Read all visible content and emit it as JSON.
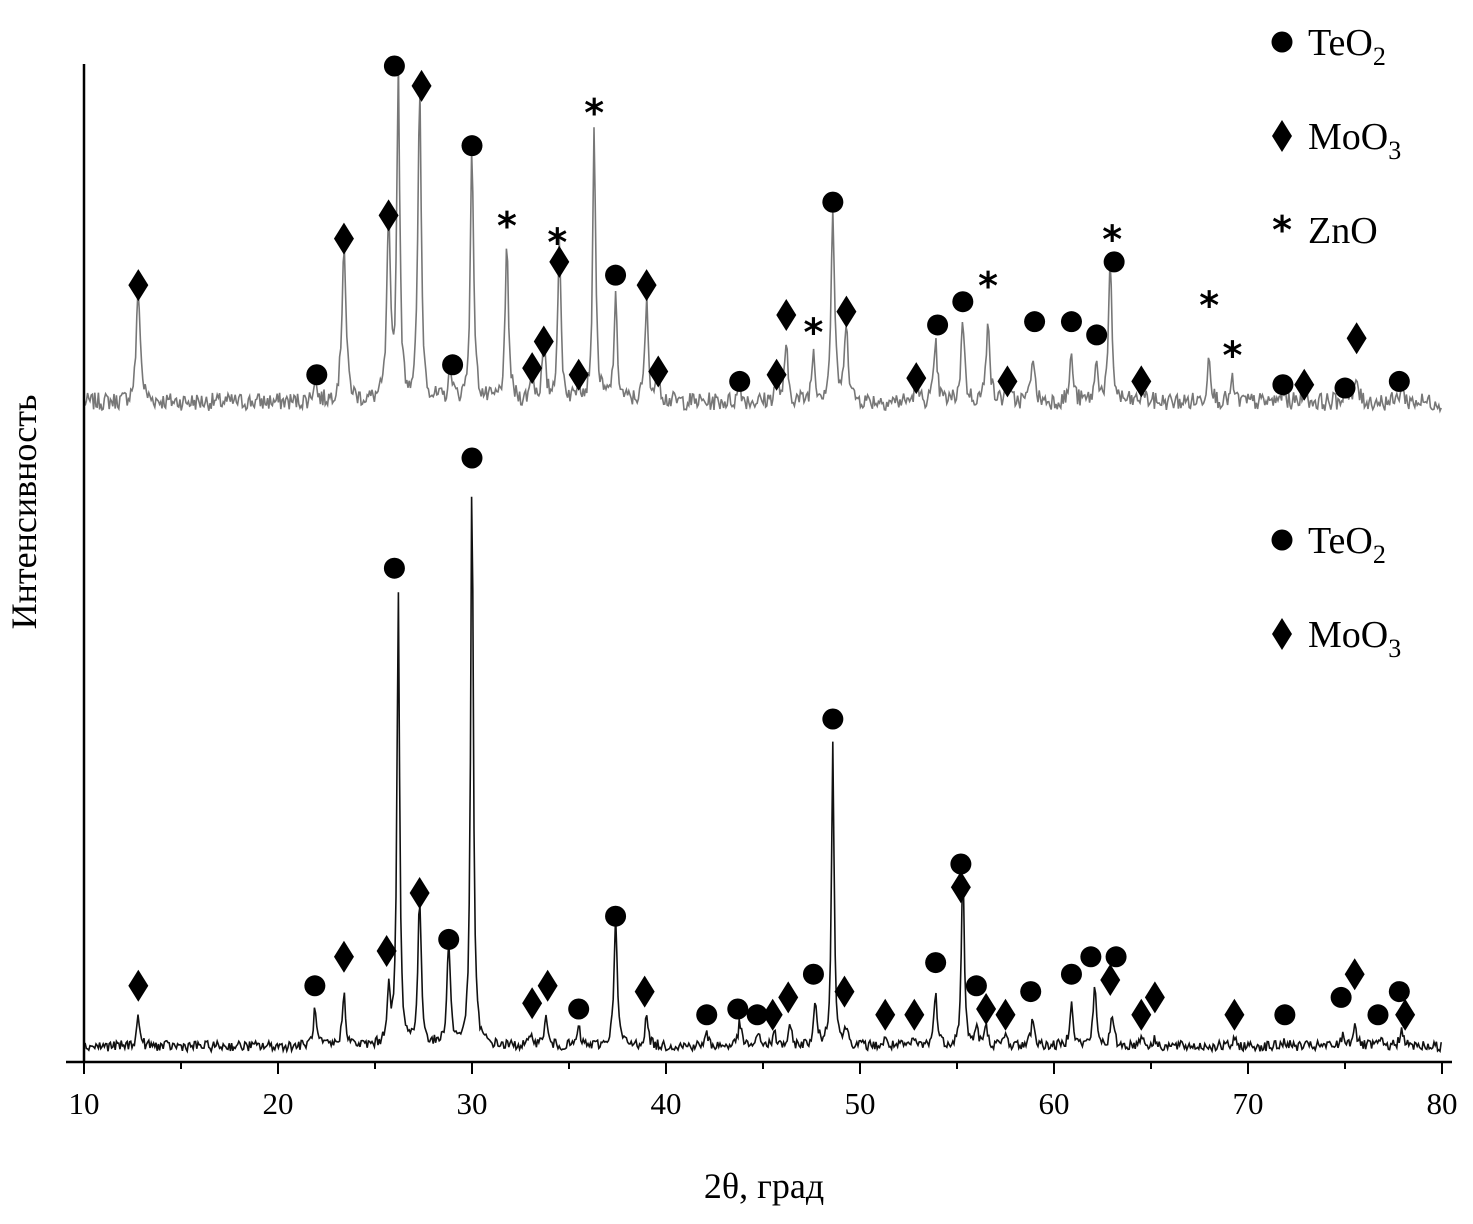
{
  "chart_data": {
    "type": "line",
    "xlabel": "2θ, град",
    "ylabel": "Интенсивность",
    "xlim": [
      10,
      80
    ],
    "xticks": [
      10,
      20,
      30,
      40,
      50,
      60,
      70,
      80
    ],
    "legends": [
      {
        "pattern": "top",
        "entries": [
          {
            "symbol": "circle",
            "text": "TeO",
            "sub": "2"
          },
          {
            "symbol": "diamond",
            "text": "MoO",
            "sub": "3"
          },
          {
            "symbol": "asterisk",
            "text": "ZnO",
            "sub": ""
          }
        ]
      },
      {
        "pattern": "bottom",
        "entries": [
          {
            "symbol": "circle",
            "text": "TeO",
            "sub": "2"
          },
          {
            "symbol": "diamond",
            "text": "MoO",
            "sub": "3"
          }
        ]
      }
    ],
    "series": [
      {
        "id": "top",
        "color": "#777777",
        "baseline_intensity": 0.03,
        "peaks": [
          [
            12.8,
            0.34,
            0.12
          ],
          [
            21.9,
            0.07,
            0.1
          ],
          [
            23.4,
            0.48,
            0.12
          ],
          [
            25.7,
            0.55,
            0.1
          ],
          [
            26.2,
            1.0,
            0.09
          ],
          [
            27.3,
            0.94,
            0.1
          ],
          [
            28.9,
            0.1,
            0.1
          ],
          [
            30.0,
            0.76,
            0.1
          ],
          [
            31.8,
            0.46,
            0.1
          ],
          [
            33.1,
            0.09,
            0.1
          ],
          [
            33.7,
            0.17,
            0.1
          ],
          [
            34.5,
            0.47,
            0.1
          ],
          [
            35.5,
            0.07,
            0.1
          ],
          [
            36.3,
            0.82,
            0.09
          ],
          [
            37.4,
            0.3,
            0.1
          ],
          [
            39.0,
            0.3,
            0.1
          ],
          [
            39.6,
            0.1,
            0.1
          ],
          [
            43.8,
            0.05,
            0.1
          ],
          [
            45.7,
            0.08,
            0.1
          ],
          [
            46.2,
            0.16,
            0.1
          ],
          [
            47.6,
            0.15,
            0.1
          ],
          [
            48.6,
            0.58,
            0.1
          ],
          [
            49.3,
            0.25,
            0.1
          ],
          [
            52.9,
            0.06,
            0.1
          ],
          [
            53.9,
            0.17,
            0.1
          ],
          [
            55.3,
            0.26,
            0.1
          ],
          [
            56.6,
            0.27,
            0.1
          ],
          [
            57.6,
            0.05,
            0.1
          ],
          [
            58.9,
            0.15,
            0.1
          ],
          [
            60.9,
            0.14,
            0.1
          ],
          [
            62.2,
            0.12,
            0.1
          ],
          [
            62.9,
            0.41,
            0.1
          ],
          [
            64.6,
            0.04,
            0.1
          ],
          [
            68.0,
            0.15,
            0.1
          ],
          [
            69.2,
            0.06,
            0.1
          ],
          [
            71.8,
            0.04,
            0.1
          ],
          [
            72.9,
            0.04,
            0.1
          ],
          [
            75.0,
            0.04,
            0.1
          ],
          [
            75.6,
            0.07,
            0.1
          ],
          [
            77.9,
            0.05,
            0.1
          ]
        ],
        "markers": [
          [
            "diamond",
            12.8,
            0.34
          ],
          [
            "circle",
            22.0,
            0.07
          ],
          [
            "diamond",
            23.4,
            0.48
          ],
          [
            "diamond",
            25.7,
            0.55
          ],
          [
            "circle",
            26.0,
            1.0
          ],
          [
            "diamond",
            27.4,
            0.94
          ],
          [
            "circle",
            29.0,
            0.1
          ],
          [
            "circle",
            30.0,
            0.76
          ],
          [
            "asterisk",
            31.8,
            0.53
          ],
          [
            "diamond",
            33.1,
            0.09
          ],
          [
            "diamond",
            33.7,
            0.17
          ],
          [
            "asterisk",
            34.4,
            0.48
          ],
          [
            "diamond",
            34.5,
            0.41
          ],
          [
            "diamond",
            35.5,
            0.07
          ],
          [
            "asterisk",
            36.3,
            0.87
          ],
          [
            "circle",
            37.4,
            0.37
          ],
          [
            "diamond",
            39.0,
            0.34
          ],
          [
            "diamond",
            39.6,
            0.08
          ],
          [
            "circle",
            43.8,
            0.05
          ],
          [
            "diamond",
            45.7,
            0.07
          ],
          [
            "diamond",
            46.2,
            0.25
          ],
          [
            "asterisk",
            47.6,
            0.21
          ],
          [
            "circle",
            48.6,
            0.59
          ],
          [
            "diamond",
            49.3,
            0.26
          ],
          [
            "diamond",
            52.9,
            0.06
          ],
          [
            "circle",
            54.0,
            0.22
          ],
          [
            "circle",
            55.3,
            0.29
          ],
          [
            "asterisk",
            56.6,
            0.35
          ],
          [
            "diamond",
            57.6,
            0.05
          ],
          [
            "circle",
            59.0,
            0.23
          ],
          [
            "circle",
            60.9,
            0.23
          ],
          [
            "circle",
            62.2,
            0.19
          ],
          [
            "asterisk",
            63.0,
            0.49
          ],
          [
            "circle",
            63.1,
            0.41
          ],
          [
            "diamond",
            64.5,
            0.05
          ],
          [
            "asterisk",
            68.0,
            0.29
          ],
          [
            "asterisk",
            69.2,
            0.14
          ],
          [
            "circle",
            71.8,
            0.04
          ],
          [
            "diamond",
            72.9,
            0.04
          ],
          [
            "circle",
            75.0,
            0.03
          ],
          [
            "diamond",
            75.6,
            0.18
          ],
          [
            "circle",
            77.8,
            0.05
          ]
        ]
      },
      {
        "id": "bottom",
        "color": "#111111",
        "baseline_intensity": 0.01,
        "peaks": [
          [
            12.8,
            0.05,
            0.1
          ],
          [
            21.9,
            0.06,
            0.1
          ],
          [
            23.4,
            0.09,
            0.1
          ],
          [
            25.7,
            0.09,
            0.1
          ],
          [
            26.2,
            0.78,
            0.08
          ],
          [
            27.3,
            0.25,
            0.1
          ],
          [
            28.8,
            0.18,
            0.1
          ],
          [
            30.0,
            1.0,
            0.08
          ],
          [
            33.1,
            0.02,
            0.1
          ],
          [
            33.8,
            0.05,
            0.1
          ],
          [
            35.5,
            0.03,
            0.1
          ],
          [
            37.4,
            0.22,
            0.1
          ],
          [
            39.0,
            0.05,
            0.1
          ],
          [
            42.1,
            0.02,
            0.1
          ],
          [
            43.8,
            0.04,
            0.1
          ],
          [
            44.8,
            0.02,
            0.1
          ],
          [
            45.6,
            0.02,
            0.1
          ],
          [
            46.4,
            0.03,
            0.1
          ],
          [
            47.7,
            0.07,
            0.1
          ],
          [
            48.6,
            0.52,
            0.08
          ],
          [
            49.3,
            0.03,
            0.1
          ],
          [
            51.3,
            0.01,
            0.1
          ],
          [
            52.8,
            0.01,
            0.1
          ],
          [
            53.9,
            0.09,
            0.1
          ],
          [
            55.3,
            0.32,
            0.08
          ],
          [
            56.0,
            0.03,
            0.1
          ],
          [
            56.5,
            0.03,
            0.1
          ],
          [
            57.5,
            0.02,
            0.1
          ],
          [
            58.9,
            0.05,
            0.1
          ],
          [
            60.9,
            0.08,
            0.1
          ],
          [
            62.1,
            0.1,
            0.1
          ],
          [
            63.0,
            0.05,
            0.1
          ],
          [
            64.5,
            0.02,
            0.1
          ],
          [
            65.2,
            0.01,
            0.1
          ],
          [
            69.3,
            0.01,
            0.1
          ],
          [
            71.9,
            0.01,
            0.1
          ],
          [
            74.9,
            0.02,
            0.1
          ],
          [
            75.5,
            0.04,
            0.1
          ],
          [
            76.8,
            0.01,
            0.1
          ],
          [
            77.9,
            0.03,
            0.1
          ]
        ],
        "markers": [
          [
            "diamond",
            12.8,
            0.09
          ],
          [
            "circle",
            21.9,
            0.09
          ],
          [
            "diamond",
            23.4,
            0.14
          ],
          [
            "diamond",
            25.6,
            0.15
          ],
          [
            "circle",
            26.0,
            0.81
          ],
          [
            "diamond",
            27.3,
            0.25
          ],
          [
            "circle",
            28.8,
            0.17
          ],
          [
            "circle",
            30.0,
            1.0
          ],
          [
            "diamond",
            33.1,
            0.06
          ],
          [
            "diamond",
            33.9,
            0.09
          ],
          [
            "circle",
            35.5,
            0.05
          ],
          [
            "circle",
            37.4,
            0.21
          ],
          [
            "diamond",
            38.9,
            0.08
          ],
          [
            "circle",
            42.1,
            0.04
          ],
          [
            "circle",
            43.7,
            0.05
          ],
          [
            "circle",
            44.7,
            0.04
          ],
          [
            "diamond",
            45.5,
            0.04
          ],
          [
            "diamond",
            46.3,
            0.07
          ],
          [
            "circle",
            47.6,
            0.11
          ],
          [
            "circle",
            48.6,
            0.55
          ],
          [
            "diamond",
            49.2,
            0.08
          ],
          [
            "diamond",
            51.3,
            0.04
          ],
          [
            "diamond",
            52.8,
            0.04
          ],
          [
            "circle",
            53.9,
            0.13
          ],
          [
            "circle",
            55.2,
            0.3
          ],
          [
            "diamond",
            55.2,
            0.26
          ],
          [
            "circle",
            56.0,
            0.09
          ],
          [
            "diamond",
            56.5,
            0.05
          ],
          [
            "diamond",
            57.5,
            0.04
          ],
          [
            "circle",
            58.8,
            0.08
          ],
          [
            "circle",
            60.9,
            0.11
          ],
          [
            "circle",
            61.9,
            0.14
          ],
          [
            "diamond",
            62.9,
            0.1
          ],
          [
            "circle",
            63.2,
            0.14
          ],
          [
            "diamond",
            64.5,
            0.04
          ],
          [
            "diamond",
            65.2,
            0.07
          ],
          [
            "diamond",
            69.3,
            0.04
          ],
          [
            "circle",
            71.9,
            0.04
          ],
          [
            "circle",
            74.8,
            0.07
          ],
          [
            "diamond",
            75.5,
            0.11
          ],
          [
            "circle",
            76.7,
            0.04
          ],
          [
            "circle",
            77.8,
            0.08
          ],
          [
            "diamond",
            78.1,
            0.04
          ]
        ]
      }
    ]
  }
}
